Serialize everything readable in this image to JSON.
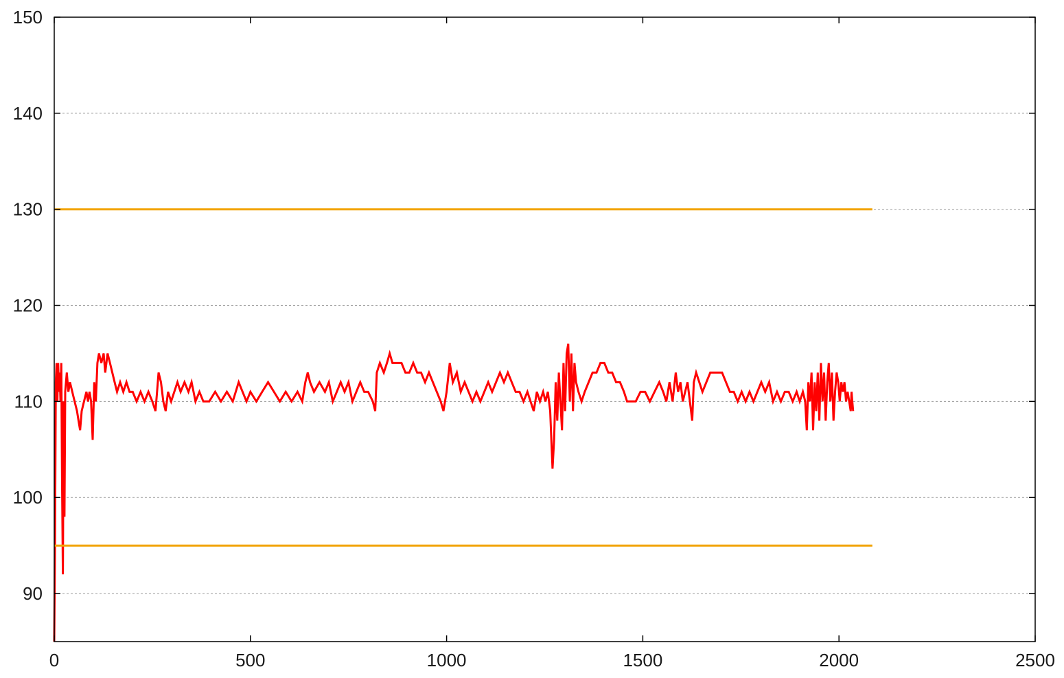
{
  "chart_data": {
    "type": "line",
    "title": "",
    "xlabel": "",
    "ylabel": "",
    "xlim": [
      0,
      2500
    ],
    "ylim": [
      85,
      150
    ],
    "x_ticks": [
      0,
      500,
      1000,
      1500,
      2000,
      2500
    ],
    "y_ticks": [
      90,
      100,
      110,
      120,
      130,
      140,
      150
    ],
    "x_tick_labels": [
      "0",
      "500",
      "1000",
      "1500",
      "2000",
      "2500"
    ],
    "y_tick_labels": [
      "90",
      "100",
      "110",
      "120",
      "130",
      "140",
      "150"
    ],
    "grid": "horizontal dashed",
    "legend": "none",
    "series": [
      {
        "color": "#ff0000",
        "style": "solid",
        "points": [
          [
            0,
            85
          ],
          [
            2,
            95
          ],
          [
            4,
            112
          ],
          [
            6,
            114
          ],
          [
            8,
            110
          ],
          [
            10,
            114
          ],
          [
            12,
            111
          ],
          [
            14,
            113
          ],
          [
            16,
            110
          ],
          [
            18,
            114
          ],
          [
            20,
            102
          ],
          [
            22,
            92
          ],
          [
            24,
            110
          ],
          [
            26,
            98
          ],
          [
            28,
            111
          ],
          [
            32,
            113
          ],
          [
            36,
            111
          ],
          [
            40,
            112
          ],
          [
            46,
            111
          ],
          [
            52,
            110
          ],
          [
            58,
            109
          ],
          [
            62,
            108
          ],
          [
            66,
            107
          ],
          [
            70,
            109
          ],
          [
            76,
            110
          ],
          [
            82,
            111
          ],
          [
            86,
            110
          ],
          [
            90,
            111
          ],
          [
            94,
            110
          ],
          [
            98,
            106
          ],
          [
            102,
            112
          ],
          [
            106,
            110
          ],
          [
            110,
            114
          ],
          [
            114,
            115
          ],
          [
            120,
            114
          ],
          [
            126,
            115
          ],
          [
            130,
            113
          ],
          [
            136,
            115
          ],
          [
            142,
            114
          ],
          [
            148,
            113
          ],
          [
            154,
            112
          ],
          [
            160,
            111
          ],
          [
            168,
            112
          ],
          [
            176,
            111
          ],
          [
            184,
            112
          ],
          [
            192,
            111
          ],
          [
            200,
            111
          ],
          [
            210,
            110
          ],
          [
            220,
            111
          ],
          [
            230,
            110
          ],
          [
            240,
            111
          ],
          [
            250,
            110
          ],
          [
            258,
            109
          ],
          [
            262,
            111
          ],
          [
            266,
            113
          ],
          [
            272,
            112
          ],
          [
            278,
            110
          ],
          [
            284,
            109
          ],
          [
            290,
            111
          ],
          [
            298,
            110
          ],
          [
            306,
            111
          ],
          [
            314,
            112
          ],
          [
            322,
            111
          ],
          [
            332,
            112
          ],
          [
            342,
            111
          ],
          [
            350,
            112
          ],
          [
            360,
            110
          ],
          [
            370,
            111
          ],
          [
            380,
            110
          ],
          [
            395,
            110
          ],
          [
            410,
            111
          ],
          [
            425,
            110
          ],
          [
            440,
            111
          ],
          [
            455,
            110
          ],
          [
            470,
            112
          ],
          [
            480,
            111
          ],
          [
            490,
            110
          ],
          [
            500,
            111
          ],
          [
            515,
            110
          ],
          [
            530,
            111
          ],
          [
            545,
            112
          ],
          [
            560,
            111
          ],
          [
            575,
            110
          ],
          [
            590,
            111
          ],
          [
            605,
            110
          ],
          [
            620,
            111
          ],
          [
            632,
            110
          ],
          [
            640,
            112
          ],
          [
            646,
            113
          ],
          [
            652,
            112
          ],
          [
            662,
            111
          ],
          [
            676,
            112
          ],
          [
            690,
            111
          ],
          [
            700,
            112
          ],
          [
            710,
            110
          ],
          [
            720,
            111
          ],
          [
            730,
            112
          ],
          [
            740,
            111
          ],
          [
            750,
            112
          ],
          [
            760,
            110
          ],
          [
            770,
            111
          ],
          [
            780,
            112
          ],
          [
            790,
            111
          ],
          [
            800,
            111
          ],
          [
            812,
            110
          ],
          [
            818,
            109
          ],
          [
            822,
            113
          ],
          [
            830,
            114
          ],
          [
            840,
            113
          ],
          [
            848,
            114
          ],
          [
            855,
            115
          ],
          [
            862,
            114
          ],
          [
            872,
            114
          ],
          [
            885,
            114
          ],
          [
            895,
            113
          ],
          [
            905,
            113
          ],
          [
            915,
            114
          ],
          [
            925,
            113
          ],
          [
            935,
            113
          ],
          [
            945,
            112
          ],
          [
            955,
            113
          ],
          [
            965,
            112
          ],
          [
            975,
            111
          ],
          [
            985,
            110
          ],
          [
            992,
            109
          ],
          [
            1000,
            111
          ],
          [
            1008,
            114
          ],
          [
            1016,
            112
          ],
          [
            1026,
            113
          ],
          [
            1036,
            111
          ],
          [
            1046,
            112
          ],
          [
            1056,
            111
          ],
          [
            1066,
            110
          ],
          [
            1076,
            111
          ],
          [
            1086,
            110
          ],
          [
            1096,
            111
          ],
          [
            1106,
            112
          ],
          [
            1116,
            111
          ],
          [
            1126,
            112
          ],
          [
            1136,
            113
          ],
          [
            1146,
            112
          ],
          [
            1156,
            113
          ],
          [
            1166,
            112
          ],
          [
            1176,
            111
          ],
          [
            1186,
            111
          ],
          [
            1196,
            110
          ],
          [
            1206,
            111
          ],
          [
            1214,
            110
          ],
          [
            1222,
            109
          ],
          [
            1230,
            111
          ],
          [
            1238,
            110
          ],
          [
            1246,
            111
          ],
          [
            1252,
            110
          ],
          [
            1258,
            111
          ],
          [
            1264,
            109
          ],
          [
            1270,
            103
          ],
          [
            1274,
            106
          ],
          [
            1278,
            112
          ],
          [
            1282,
            108
          ],
          [
            1286,
            113
          ],
          [
            1290,
            110
          ],
          [
            1294,
            107
          ],
          [
            1298,
            114
          ],
          [
            1302,
            109
          ],
          [
            1306,
            115
          ],
          [
            1310,
            116
          ],
          [
            1314,
            110
          ],
          [
            1318,
            115
          ],
          [
            1322,
            109
          ],
          [
            1326,
            114
          ],
          [
            1330,
            112
          ],
          [
            1336,
            111
          ],
          [
            1344,
            110
          ],
          [
            1352,
            111
          ],
          [
            1362,
            112
          ],
          [
            1372,
            113
          ],
          [
            1382,
            113
          ],
          [
            1392,
            114
          ],
          [
            1402,
            114
          ],
          [
            1412,
            113
          ],
          [
            1422,
            113
          ],
          [
            1432,
            112
          ],
          [
            1442,
            112
          ],
          [
            1452,
            111
          ],
          [
            1460,
            110
          ],
          [
            1470,
            110
          ],
          [
            1482,
            110
          ],
          [
            1494,
            111
          ],
          [
            1506,
            111
          ],
          [
            1518,
            110
          ],
          [
            1530,
            111
          ],
          [
            1542,
            112
          ],
          [
            1552,
            111
          ],
          [
            1560,
            110
          ],
          [
            1568,
            112
          ],
          [
            1576,
            110
          ],
          [
            1584,
            113
          ],
          [
            1590,
            111
          ],
          [
            1596,
            112
          ],
          [
            1602,
            110
          ],
          [
            1608,
            111
          ],
          [
            1614,
            112
          ],
          [
            1620,
            110
          ],
          [
            1626,
            108
          ],
          [
            1630,
            112
          ],
          [
            1636,
            113
          ],
          [
            1644,
            112
          ],
          [
            1652,
            111
          ],
          [
            1662,
            112
          ],
          [
            1672,
            113
          ],
          [
            1682,
            113
          ],
          [
            1692,
            113
          ],
          [
            1702,
            113
          ],
          [
            1712,
            112
          ],
          [
            1722,
            111
          ],
          [
            1732,
            111
          ],
          [
            1742,
            110
          ],
          [
            1752,
            111
          ],
          [
            1762,
            110
          ],
          [
            1772,
            111
          ],
          [
            1782,
            110
          ],
          [
            1792,
            111
          ],
          [
            1802,
            112
          ],
          [
            1812,
            111
          ],
          [
            1822,
            112
          ],
          [
            1832,
            110
          ],
          [
            1842,
            111
          ],
          [
            1852,
            110
          ],
          [
            1862,
            111
          ],
          [
            1872,
            111
          ],
          [
            1882,
            110
          ],
          [
            1892,
            111
          ],
          [
            1900,
            110
          ],
          [
            1908,
            111
          ],
          [
            1914,
            110
          ],
          [
            1918,
            107
          ],
          [
            1922,
            112
          ],
          [
            1926,
            110
          ],
          [
            1930,
            113
          ],
          [
            1934,
            107
          ],
          [
            1938,
            112
          ],
          [
            1942,
            109
          ],
          [
            1946,
            113
          ],
          [
            1950,
            108
          ],
          [
            1954,
            114
          ],
          [
            1958,
            110
          ],
          [
            1962,
            113
          ],
          [
            1966,
            108
          ],
          [
            1970,
            112
          ],
          [
            1974,
            114
          ],
          [
            1978,
            110
          ],
          [
            1982,
            113
          ],
          [
            1986,
            108
          ],
          [
            1990,
            111
          ],
          [
            1994,
            113
          ],
          [
            1998,
            112
          ],
          [
            2002,
            110
          ],
          [
            2006,
            112
          ],
          [
            2010,
            111
          ],
          [
            2014,
            112
          ],
          [
            2018,
            110
          ],
          [
            2022,
            111
          ],
          [
            2026,
            110
          ],
          [
            2030,
            109
          ],
          [
            2032,
            111
          ],
          [
            2034,
            110
          ],
          [
            2036,
            109
          ]
        ]
      },
      {
        "color": "#f2a400",
        "style": "solid",
        "points": [
          [
            0,
            130
          ],
          [
            2085,
            130
          ]
        ]
      },
      {
        "color": "#f2a400",
        "style": "solid",
        "points": [
          [
            0,
            95
          ],
          [
            2085,
            95
          ]
        ]
      }
    ]
  }
}
